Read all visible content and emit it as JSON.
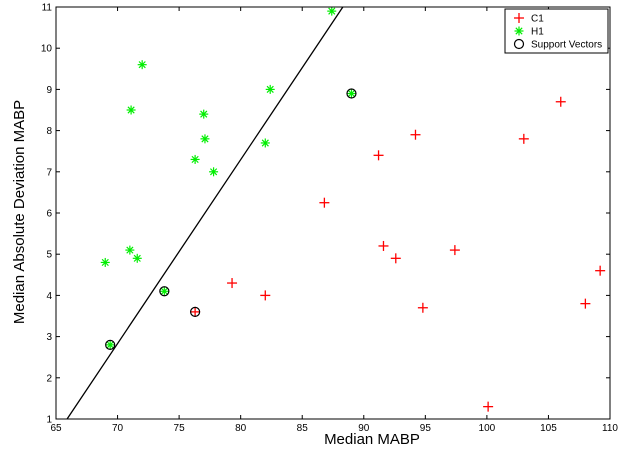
{
  "chart_data": {
    "type": "scatter",
    "xlabel": "Median MABP",
    "ylabel": "Median Absolute Deviation MABP",
    "xlim": [
      65,
      110
    ],
    "ylim": [
      1,
      11
    ],
    "xticks": [
      65,
      70,
      75,
      80,
      85,
      90,
      95,
      100,
      105,
      110
    ],
    "yticks": [
      1,
      2,
      3,
      4,
      5,
      6,
      7,
      8,
      9,
      10,
      11
    ],
    "grid": false,
    "legend_position": "top-right",
    "series": [
      {
        "name": "C1",
        "marker": "plus",
        "color": "#ff0000",
        "points": [
          [
            76.3,
            3.6
          ],
          [
            79.3,
            4.3
          ],
          [
            82.0,
            4.0
          ],
          [
            86.8,
            6.25
          ],
          [
            91.2,
            7.4
          ],
          [
            91.6,
            5.2
          ],
          [
            92.6,
            4.9
          ],
          [
            94.2,
            7.9
          ],
          [
            94.8,
            3.7
          ],
          [
            97.4,
            5.1
          ],
          [
            100.1,
            1.3
          ],
          [
            103.0,
            7.8
          ],
          [
            106.0,
            8.7
          ],
          [
            108.0,
            3.8
          ],
          [
            109.2,
            4.6
          ]
        ]
      },
      {
        "name": "H1",
        "marker": "asterisk",
        "color": "#00ee00",
        "points": [
          [
            69.0,
            4.8
          ],
          [
            69.4,
            2.8
          ],
          [
            71.0,
            5.1
          ],
          [
            71.1,
            8.5
          ],
          [
            71.6,
            4.9
          ],
          [
            72.0,
            9.6
          ],
          [
            73.8,
            4.1
          ],
          [
            76.3,
            7.3
          ],
          [
            77.0,
            8.4
          ],
          [
            77.1,
            7.8
          ],
          [
            77.8,
            7.0
          ],
          [
            82.0,
            7.7
          ],
          [
            82.4,
            9.0
          ],
          [
            87.4,
            10.9
          ],
          [
            89.0,
            8.9
          ]
        ]
      },
      {
        "name": "Support Vectors",
        "marker": "circle",
        "color": "#000000",
        "points": [
          [
            69.4,
            2.8
          ],
          [
            73.8,
            4.1
          ],
          [
            76.3,
            3.6
          ],
          [
            89.0,
            8.9
          ]
        ]
      }
    ],
    "decision_boundary": {
      "color": "#000000",
      "points": [
        [
          65.9,
          1.0
        ],
        [
          88.3,
          11.0
        ]
      ]
    }
  }
}
